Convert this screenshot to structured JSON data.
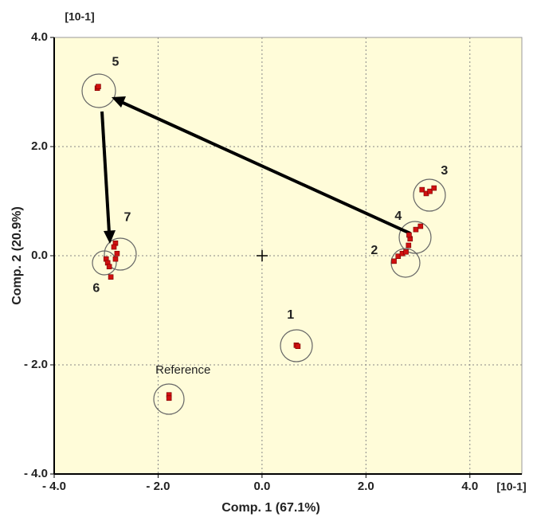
{
  "chart_data": {
    "type": "scatter",
    "x_label": "Comp. 1 (67.1%)",
    "y_label": "Comp. 2 (20.9%)",
    "x_unit": "[10-1]",
    "y_unit": "[10-1]",
    "xlim": [
      -4,
      5
    ],
    "ylim": [
      -4,
      4
    ],
    "xticks": [
      {
        "value": -4,
        "label": "- 4.0"
      },
      {
        "value": -2,
        "label": "- 2.0"
      },
      {
        "value": 0,
        "label": "0.0"
      },
      {
        "value": 2,
        "label": "2.0"
      },
      {
        "value": 4,
        "label": "4.0"
      }
    ],
    "yticks": [
      {
        "value": -4,
        "label": "- 4.0"
      },
      {
        "value": -2,
        "label": "- 2.0"
      },
      {
        "value": 0,
        "label": "0.0"
      },
      {
        "value": 2,
        "label": "2.0"
      },
      {
        "value": 4,
        "label": "4.0"
      }
    ],
    "grid": true,
    "series": [
      {
        "color": "#d01010",
        "x": [
          -3.17,
          -3.15,
          -2.82,
          -2.79,
          -2.82,
          -2.85,
          -3.0,
          -2.97,
          -2.94,
          -2.91,
          0.66,
          0.69,
          -1.79,
          -1.79,
          3.08,
          3.16,
          3.23,
          3.31,
          2.85,
          2.96,
          3.05,
          2.83,
          2.54,
          2.62,
          2.7,
          2.77,
          2.82
        ],
        "y": [
          3.07,
          3.1,
          0.23,
          0.04,
          -0.06,
          0.16,
          -0.06,
          -0.13,
          -0.2,
          -0.39,
          -1.64,
          -1.66,
          -2.55,
          -2.61,
          1.21,
          1.14,
          1.18,
          1.24,
          0.31,
          0.48,
          0.54,
          0.38,
          -0.1,
          -0.01,
          0.04,
          0.07,
          0.19
        ]
      }
    ],
    "annotations": [
      {
        "text": "5",
        "x": -2.82,
        "y": 3.54
      },
      {
        "text": "3",
        "x": 3.51,
        "y": 1.55
      },
      {
        "text": "4",
        "x": 2.62,
        "y": 0.72
      },
      {
        "text": "2",
        "x": 2.16,
        "y": 0.09
      },
      {
        "text": "7",
        "x": -2.59,
        "y": 0.7
      },
      {
        "text": "6",
        "x": -3.19,
        "y": -0.6
      },
      {
        "text": "1",
        "x": 0.55,
        "y": -1.09
      },
      {
        "text": "Reference",
        "x": -1.52,
        "y": -2.1
      }
    ]
  }
}
